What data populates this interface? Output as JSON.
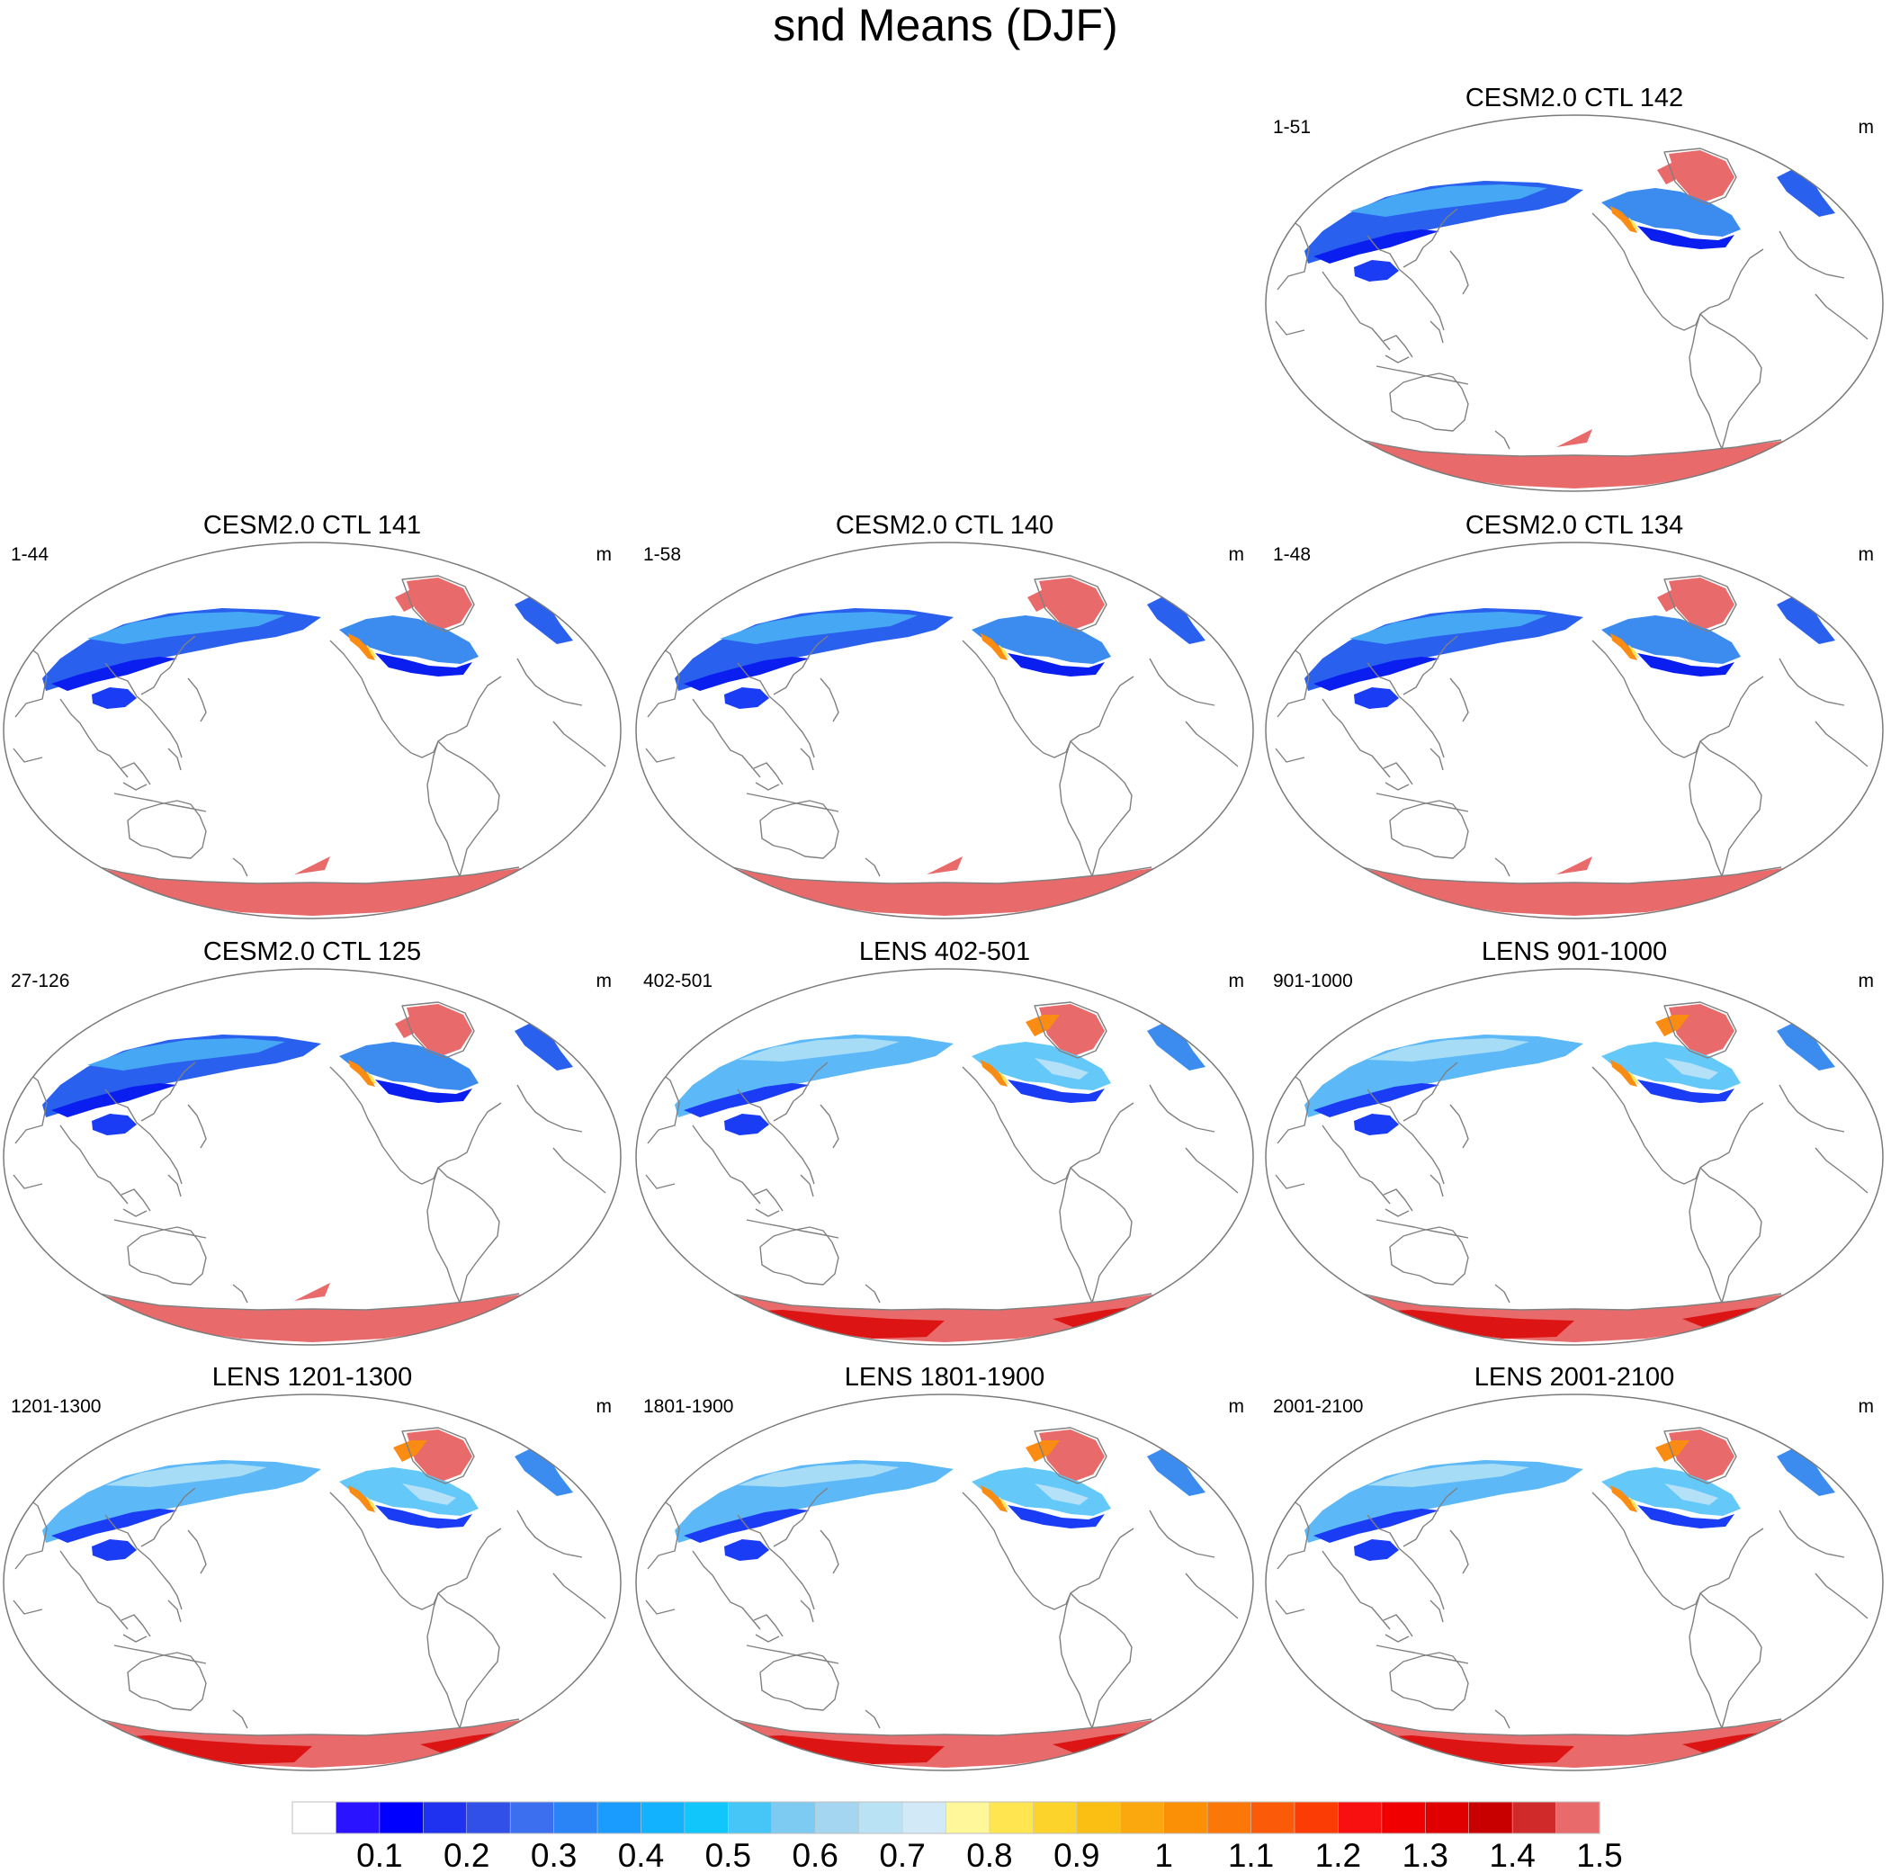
{
  "title": "snd Means (DJF)",
  "panels": [
    {
      "title": "CESM2.0 CTL 142",
      "range": "1-51",
      "units": "m",
      "pattern": "ctl"
    },
    {
      "title": "CESM2.0 CTL 141",
      "range": "1-44",
      "units": "m",
      "pattern": "ctl"
    },
    {
      "title": "CESM2.0 CTL 140",
      "range": "1-58",
      "units": "m",
      "pattern": "ctl"
    },
    {
      "title": "CESM2.0 CTL 134",
      "range": "1-48",
      "units": "m",
      "pattern": "ctl"
    },
    {
      "title": "CESM2.0 CTL 125",
      "range": "27-126",
      "units": "m",
      "pattern": "ctl"
    },
    {
      "title": "LENS 402-501",
      "range": "402-501",
      "units": "m",
      "pattern": "lens"
    },
    {
      "title": "LENS 901-1000",
      "range": "901-1000",
      "units": "m",
      "pattern": "lens"
    },
    {
      "title": "LENS 1201-1300",
      "range": "1201-1300",
      "units": "m",
      "pattern": "lens"
    },
    {
      "title": "LENS 1801-1900",
      "range": "1801-1900",
      "units": "m",
      "pattern": "lens"
    },
    {
      "title": "LENS 2001-2100",
      "range": "2001-2100",
      "units": "m",
      "pattern": "lens"
    }
  ],
  "colorbar": {
    "labels": [
      "0.1",
      "0.2",
      "0.3",
      "0.4",
      "0.5",
      "0.6",
      "0.7",
      "0.8",
      "0.9",
      "1",
      "1.1",
      "1.2",
      "1.3",
      "1.4",
      "1.5"
    ],
    "colors": [
      "#ffffff",
      "#2a14ff",
      "#0000ff",
      "#1e32f0",
      "#3050e8",
      "#3c6ef0",
      "#2b84f5",
      "#1a9cff",
      "#12b2ff",
      "#10c6fb",
      "#46c6f6",
      "#7dcaf3",
      "#a4d6f1",
      "#b9e2f5",
      "#d2eaf8",
      "#fff799",
      "#ffe650",
      "#fcd32a",
      "#fbbf14",
      "#fba80e",
      "#fb9007",
      "#fb7808",
      "#fb5a08",
      "#fb3c04",
      "#f81010",
      "#f00000",
      "#e00000",
      "#c80000",
      "#d02a2a",
      "#e86a6a"
    ]
  },
  "map_colors": {
    "land_outline": "#808080",
    "snow_deep": "#0a1ef0",
    "snow_mid": "#3c8cf0",
    "snow_shallow": "#64c8f8",
    "snow_light": "#b4e0f8",
    "ice_sheet": "#e86a6a",
    "ice_deep": "#dc1414",
    "orange": "#fa8c14",
    "yellow": "#ffe65a"
  }
}
